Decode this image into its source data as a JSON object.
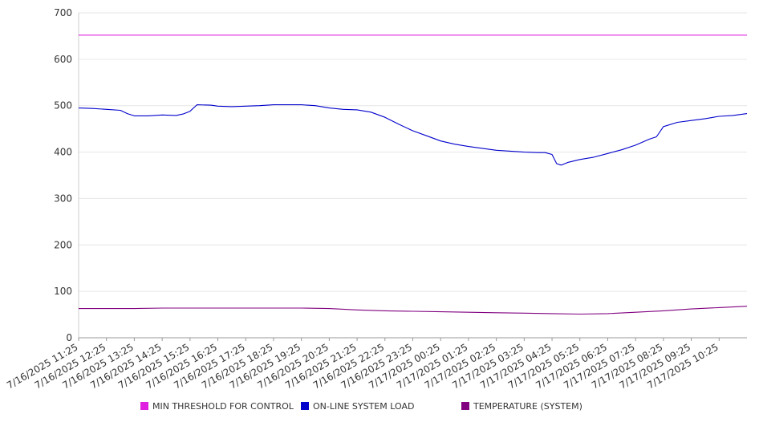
{
  "chart_data": {
    "type": "line",
    "ylim": [
      0,
      700
    ],
    "y_ticks": [
      0,
      100,
      200,
      300,
      400,
      500,
      600,
      700
    ],
    "grid": "horizontal",
    "legend_position": "bottom",
    "x_tick_labels": [
      "7/16/2025 11:25",
      "7/16/2025 12:25",
      "7/16/2025 13:25",
      "7/16/2025 14:25",
      "7/16/2025 15:25",
      "7/16/2025 16:25",
      "7/16/2025 17:25",
      "7/16/2025 18:25",
      "7/16/2025 19:25",
      "7/16/2025 20:25",
      "7/16/2025 21:25",
      "7/16/2025 22:25",
      "7/16/2025 23:25",
      "7/17/2025 00:25",
      "7/17/2025 01:25",
      "7/17/2025 02:25",
      "7/17/2025 03:25",
      "7/17/2025 04:25",
      "7/17/2025 05:25",
      "7/17/2025 06:25",
      "7/17/2025 07:25",
      "7/17/2025 08:25",
      "7/17/2025 09:25",
      "7/17/2025 10:25"
    ],
    "x_end": "7/17/2025 11:25",
    "series": [
      {
        "name": "MIN THRESHOLD FOR CONTROL",
        "color": "#e020e0",
        "points": [
          [
            "7/16/2025 11:25",
            652
          ],
          [
            "7/17/2025 11:25",
            652
          ]
        ]
      },
      {
        "name": "ON-LINE SYSTEM LOAD",
        "color": "#0000cc",
        "points": [
          [
            "7/16/2025 11:25",
            495
          ],
          [
            "7/16/2025 11:55",
            494
          ],
          [
            "7/16/2025 12:25",
            492
          ],
          [
            "7/16/2025 12:55",
            490
          ],
          [
            "7/16/2025 13:10",
            483
          ],
          [
            "7/16/2025 13:25",
            478
          ],
          [
            "7/16/2025 13:55",
            478
          ],
          [
            "7/16/2025 14:25",
            480
          ],
          [
            "7/16/2025 14:55",
            479
          ],
          [
            "7/16/2025 15:10",
            482
          ],
          [
            "7/16/2025 15:25",
            488
          ],
          [
            "7/16/2025 15:40",
            502
          ],
          [
            "7/16/2025 16:10",
            501
          ],
          [
            "7/16/2025 16:25",
            499
          ],
          [
            "7/16/2025 16:55",
            498
          ],
          [
            "7/16/2025 17:25",
            499
          ],
          [
            "7/16/2025 17:55",
            500
          ],
          [
            "7/16/2025 18:25",
            502
          ],
          [
            "7/16/2025 18:55",
            502
          ],
          [
            "7/16/2025 19:25",
            502
          ],
          [
            "7/16/2025 19:55",
            500
          ],
          [
            "7/16/2025 20:25",
            495
          ],
          [
            "7/16/2025 20:55",
            492
          ],
          [
            "7/16/2025 21:25",
            491
          ],
          [
            "7/16/2025 21:55",
            486
          ],
          [
            "7/16/2025 22:25",
            475
          ],
          [
            "7/16/2025 22:55",
            460
          ],
          [
            "7/16/2025 23:25",
            446
          ],
          [
            "7/16/2025 23:55",
            435
          ],
          [
            "7/17/2025 00:25",
            424
          ],
          [
            "7/17/2025 00:55",
            417
          ],
          [
            "7/17/2025 01:25",
            412
          ],
          [
            "7/17/2025 01:55",
            408
          ],
          [
            "7/17/2025 02:25",
            404
          ],
          [
            "7/17/2025 02:55",
            402
          ],
          [
            "7/17/2025 03:25",
            400
          ],
          [
            "7/17/2025 03:55",
            399
          ],
          [
            "7/17/2025 04:10",
            399
          ],
          [
            "7/17/2025 04:25",
            395
          ],
          [
            "7/17/2025 04:35",
            375
          ],
          [
            "7/17/2025 04:45",
            372
          ],
          [
            "7/17/2025 05:00",
            378
          ],
          [
            "7/17/2025 05:25",
            384
          ],
          [
            "7/17/2025 05:55",
            389
          ],
          [
            "7/17/2025 06:25",
            397
          ],
          [
            "7/17/2025 06:55",
            405
          ],
          [
            "7/17/2025 07:25",
            415
          ],
          [
            "7/17/2025 07:55",
            428
          ],
          [
            "7/17/2025 08:10",
            433
          ],
          [
            "7/17/2025 08:25",
            455
          ],
          [
            "7/17/2025 08:55",
            464
          ],
          [
            "7/17/2025 09:25",
            468
          ],
          [
            "7/17/2025 09:55",
            472
          ],
          [
            "7/17/2025 10:25",
            477
          ],
          [
            "7/17/2025 10:55",
            479
          ],
          [
            "7/17/2025 11:25",
            483
          ]
        ]
      },
      {
        "name": "TEMPERATURE (SYSTEM)",
        "color": "#800080",
        "points": [
          [
            "7/16/2025 11:25",
            63
          ],
          [
            "7/16/2025 13:25",
            63
          ],
          [
            "7/16/2025 14:25",
            64
          ],
          [
            "7/16/2025 17:25",
            64
          ],
          [
            "7/16/2025 19:25",
            64
          ],
          [
            "7/16/2025 20:25",
            63
          ],
          [
            "7/16/2025 21:25",
            60
          ],
          [
            "7/16/2025 22:25",
            58
          ],
          [
            "7/16/2025 23:25",
            57
          ],
          [
            "7/17/2025 00:25",
            56
          ],
          [
            "7/17/2025 01:25",
            55
          ],
          [
            "7/17/2025 02:25",
            54
          ],
          [
            "7/17/2025 03:25",
            53
          ],
          [
            "7/17/2025 04:25",
            52
          ],
          [
            "7/17/2025 05:25",
            51
          ],
          [
            "7/17/2025 06:25",
            52
          ],
          [
            "7/17/2025 07:25",
            55
          ],
          [
            "7/17/2025 08:25",
            58
          ],
          [
            "7/17/2025 09:25",
            62
          ],
          [
            "7/17/2025 10:25",
            65
          ],
          [
            "7/17/2025 11:25",
            68
          ]
        ]
      }
    ]
  }
}
